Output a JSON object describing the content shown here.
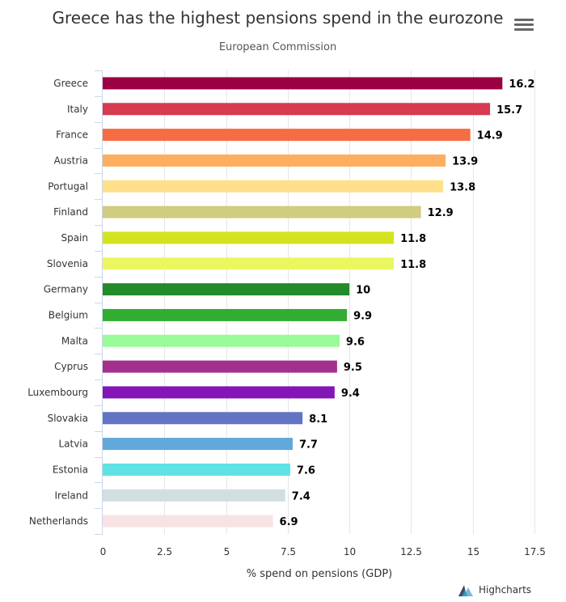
{
  "chart_data": {
    "type": "bar",
    "orientation": "horizontal",
    "title": "Greece has the highest pensions spend in the eurozone",
    "subtitle": "European Commission",
    "xlabel": "% spend on pensions (GDP)",
    "categories": [
      "Greece",
      "Italy",
      "France",
      "Austria",
      "Portugal",
      "Finland",
      "Spain",
      "Slovenia",
      "Germany",
      "Belgium",
      "Malta",
      "Cyprus",
      "Luxembourg",
      "Slovakia",
      "Latvia",
      "Estonia",
      "Ireland",
      "Netherlands"
    ],
    "values": [
      16.2,
      15.7,
      14.9,
      13.9,
      13.8,
      12.9,
      11.8,
      11.8,
      10,
      9.9,
      9.6,
      9.5,
      9.4,
      8.1,
      7.7,
      7.6,
      7.4,
      6.9
    ],
    "colors": [
      "#9b0042",
      "#d63b50",
      "#f46d43",
      "#fdae61",
      "#fee08b",
      "#d0cc80",
      "#d4e31f",
      "#ebf75e",
      "#238b2a",
      "#31ad31",
      "#98fb98",
      "#a2308c",
      "#8416b8",
      "#6474c4",
      "#62a8db",
      "#5ee2e4",
      "#d3dfdf",
      "#f7e3e3"
    ],
    "xlim": [
      0,
      17.5
    ],
    "xticks": [
      0,
      2.5,
      5,
      7.5,
      10,
      12.5,
      15,
      17.5
    ],
    "xtick_labels": [
      "0",
      "2.5",
      "5",
      "7.5",
      "10",
      "12.5",
      "15",
      "17.5"
    ],
    "grid": true,
    "legend": false
  },
  "credits": "Highcharts",
  "menu_icon": "hamburger-menu-icon",
  "brand_icon": "highcharts-logo-icon"
}
